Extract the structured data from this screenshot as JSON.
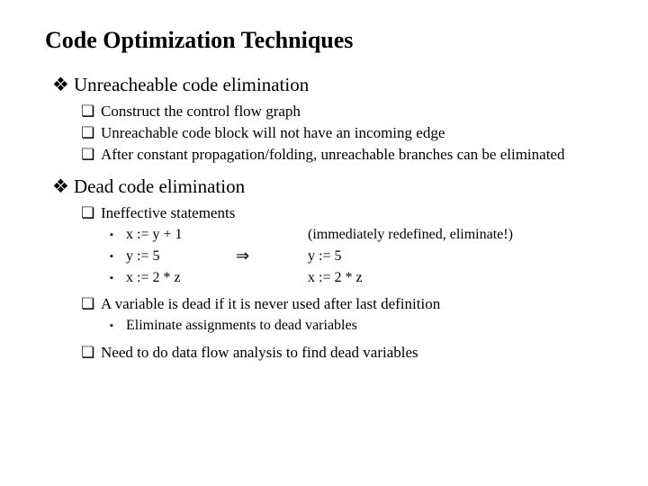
{
  "title": "Code Optimization Techniques",
  "bullets": {
    "diamond": "❖",
    "square_hollow": "❏",
    "square_solid": "▪"
  },
  "section1": {
    "heading": "Unreacheable code elimination",
    "items": [
      "Construct the control flow graph",
      "Unreachable code block will not have an incoming edge",
      "After constant propagation/folding, unreachable branches can be eliminated"
    ]
  },
  "section2": {
    "heading": "Dead code elimination",
    "item1": "Ineffective statements",
    "code": {
      "left": [
        "x := y + 1",
        "y := 5",
        "x := 2 * z"
      ],
      "arrow": "⇒",
      "right": [
        "(immediately redefined, eliminate!)",
        "y := 5",
        "x := 2 * z"
      ]
    },
    "item2": "A variable is dead if it is never used after last definition",
    "sub2": "Eliminate assignments to dead variables",
    "item3": "Need to do data flow analysis to find dead variables"
  }
}
